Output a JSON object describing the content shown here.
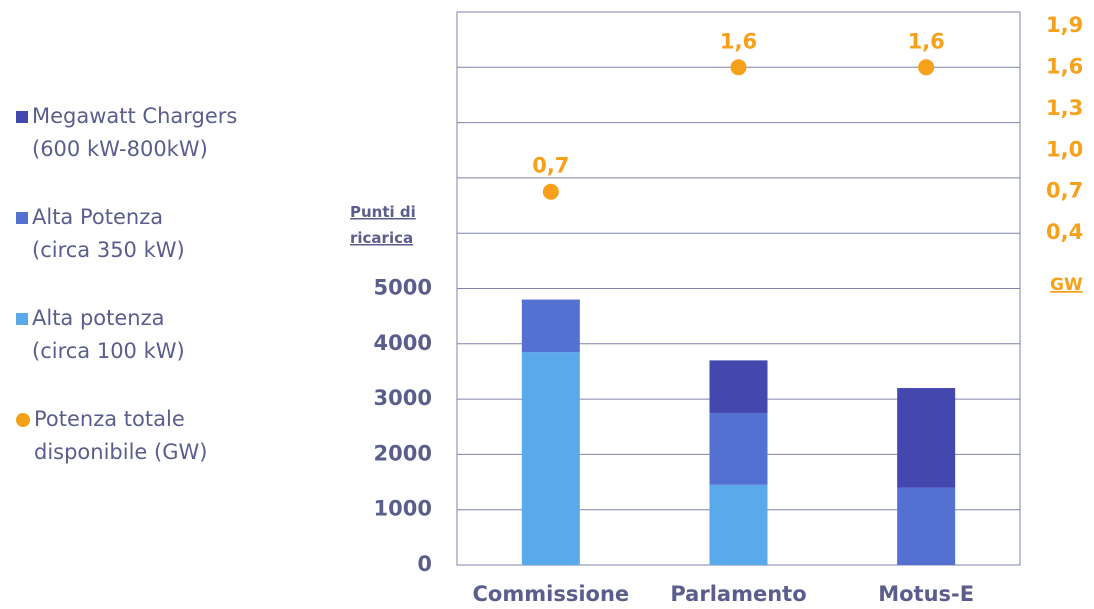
{
  "chart_data": {
    "type": "bar",
    "categories": [
      "Commissione",
      "Parlamento",
      "Motus-E"
    ],
    "series": [
      {
        "name": "Megawatt Chargers\n(600 kW-800kW)",
        "color": "#4347ae",
        "values": [
          0,
          950,
          1800
        ]
      },
      {
        "name": "Alta Potenza\n(circa 350 kW)",
        "color": "#5470d0",
        "values": [
          950,
          1300,
          1400
        ]
      },
      {
        "name": "Alta potenza\n(circa 100 kW)",
        "color": "#5aaaeb",
        "values": [
          3850,
          1450,
          0
        ]
      },
      {
        "name": "Potenza totale\ndisponibile (GW)",
        "color": "#f7a01a",
        "type": "scatter",
        "axis": "y2",
        "values": [
          0.7,
          1.6,
          1.6
        ],
        "value_labels": [
          "0,7",
          "1,6",
          "1,6"
        ]
      }
    ],
    "ylabel": "Punti di\nricarica",
    "y2label": "GW",
    "ylim": [
      0,
      10000
    ],
    "yticks": [
      0,
      1000,
      2000,
      3000,
      4000,
      5000
    ],
    "ygrid": [
      0,
      1000,
      2000,
      3000,
      4000,
      5000,
      6000,
      7000,
      8000,
      9000,
      10000
    ],
    "y2lim": [
      -2,
      2
    ],
    "y2ticks": [
      {
        "value": 0.4,
        "label": "0,4"
      },
      {
        "value": 0.7,
        "label": "0,7"
      },
      {
        "value": 1.0,
        "label": "1,0"
      },
      {
        "value": 1.3,
        "label": "1,3"
      },
      {
        "value": 1.6,
        "label": "1,6"
      },
      {
        "value": 1.9,
        "label": "1,9"
      }
    ],
    "grid": true,
    "legend": "left"
  }
}
